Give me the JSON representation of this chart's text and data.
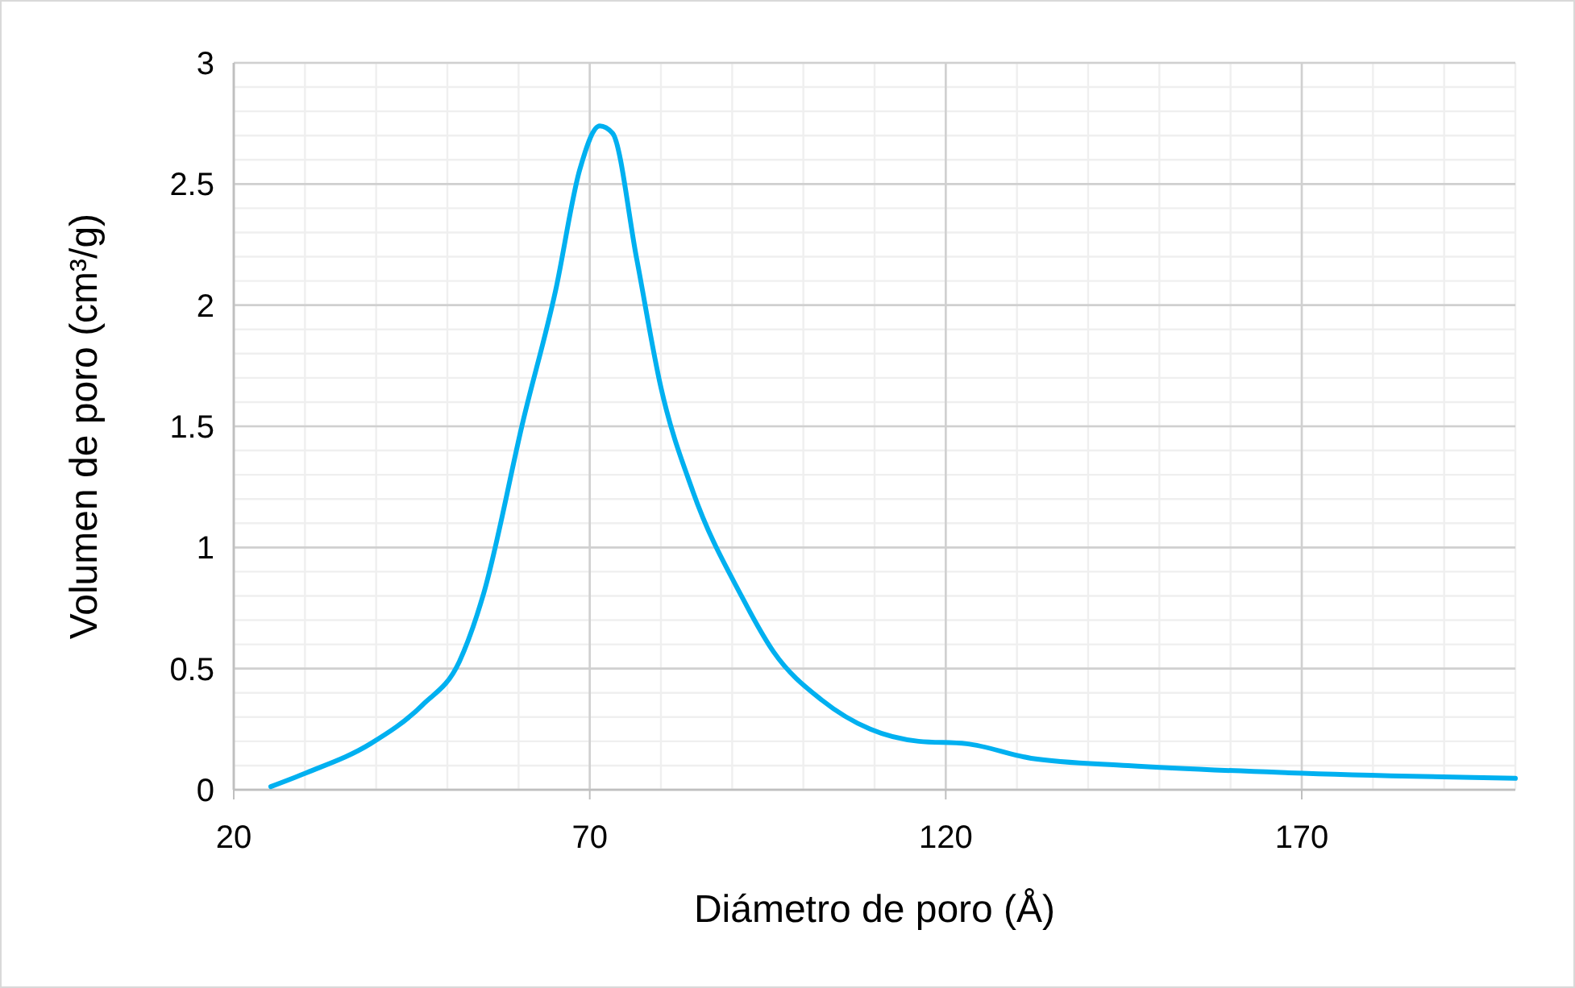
{
  "chart_data": {
    "type": "line",
    "xlabel": "Diámetro de poro (Å)",
    "ylabel": "Volumen de poro (cm³/g)",
    "xlim": [
      20,
      200
    ],
    "xticks": [
      20,
      70,
      120,
      170
    ],
    "ylim": [
      0,
      3
    ],
    "yticks": [
      0,
      0.5,
      1,
      1.5,
      2,
      2.5,
      3
    ],
    "grid": true,
    "marker": "none",
    "line_style": "solid",
    "series": [
      {
        "color": "#00b0f0",
        "x": [
          25.2,
          30.2,
          39.2,
          46.5,
          51.7,
          55,
          60.7,
          65.2,
          68.6,
          71.4,
          73.2,
          76.6,
          80,
          84.5,
          91.3,
          95.8,
          102.6,
          109.4,
          116.2,
          122.9,
          132,
          145.6,
          168.2,
          200
        ],
        "values": [
          0.013,
          0.07,
          0.19,
          0.35,
          0.53,
          0.8,
          1.53,
          2.06,
          2.56,
          2.74,
          2.71,
          2.19,
          1.66,
          1.23,
          0.8,
          0.57,
          0.37,
          0.25,
          0.2,
          0.19,
          0.13,
          0.1,
          0.07,
          0.047
        ]
      }
    ]
  }
}
